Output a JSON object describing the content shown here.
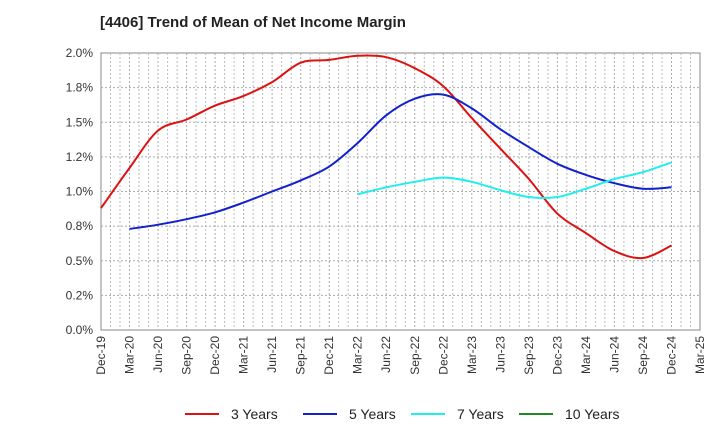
{
  "chart_data": {
    "type": "line",
    "title": "[4406]  Trend of Mean of Net Income Margin",
    "xlabel": "",
    "ylabel": "",
    "x_ticks": [
      "Dec-19",
      "Mar-20",
      "Jun-20",
      "Sep-20",
      "Dec-20",
      "Mar-21",
      "Jun-21",
      "Sep-21",
      "Dec-21",
      "Mar-22",
      "Jun-22",
      "Sep-22",
      "Dec-22",
      "Mar-23",
      "Jun-23",
      "Sep-23",
      "Dec-23",
      "Mar-24",
      "Jun-24",
      "Sep-24",
      "Dec-24",
      "Mar-25"
    ],
    "y_ticks": [
      "0.0%",
      "0.2%",
      "0.5%",
      "0.8%",
      "1.0%",
      "1.2%",
      "1.5%",
      "1.8%",
      "2.0%"
    ],
    "ylim": [
      0,
      2.0
    ],
    "grid": true,
    "legend_position": "bottom",
    "series": [
      {
        "name": "3 Years",
        "color": "#dd1111",
        "x": [
          "Dec-19",
          "Mar-20",
          "Jun-20",
          "Sep-20",
          "Dec-20",
          "Mar-21",
          "Jun-21",
          "Sep-21",
          "Dec-21",
          "Mar-22",
          "Jun-22",
          "Sep-22",
          "Dec-22",
          "Mar-23",
          "Jun-23",
          "Sep-23",
          "Dec-23",
          "Mar-24",
          "Jun-24",
          "Sep-24",
          "Dec-24"
        ],
        "values": [
          0.88,
          1.17,
          1.44,
          1.52,
          1.62,
          1.69,
          1.79,
          1.93,
          1.95,
          1.98,
          1.97,
          1.89,
          1.76,
          1.53,
          1.31,
          1.09,
          0.84,
          0.7,
          0.57,
          0.52,
          0.61
        ]
      },
      {
        "name": "5 Years",
        "color": "#1122cc",
        "x": [
          "Mar-20",
          "Jun-20",
          "Sep-20",
          "Dec-20",
          "Mar-21",
          "Jun-21",
          "Sep-21",
          "Dec-21",
          "Mar-22",
          "Jun-22",
          "Sep-22",
          "Dec-22",
          "Mar-23",
          "Jun-23",
          "Sep-23",
          "Dec-23",
          "Mar-24",
          "Jun-24",
          "Sep-24",
          "Dec-24"
        ],
        "values": [
          0.73,
          0.76,
          0.8,
          0.85,
          0.92,
          1.0,
          1.08,
          1.18,
          1.35,
          1.55,
          1.67,
          1.7,
          1.6,
          1.45,
          1.32,
          1.2,
          1.12,
          1.06,
          1.02,
          1.03
        ]
      },
      {
        "name": "7 Years",
        "color": "#22eeee",
        "x": [
          "Mar-22",
          "Jun-22",
          "Sep-22",
          "Dec-22",
          "Mar-23",
          "Jun-23",
          "Sep-23",
          "Dec-23",
          "Mar-24",
          "Jun-24",
          "Sep-24",
          "Dec-24"
        ],
        "values": [
          0.98,
          1.03,
          1.07,
          1.1,
          1.07,
          1.01,
          0.96,
          0.96,
          1.02,
          1.09,
          1.14,
          1.21
        ]
      },
      {
        "name": "10 Years",
        "color": "#228822",
        "x": [],
        "values": []
      }
    ]
  }
}
